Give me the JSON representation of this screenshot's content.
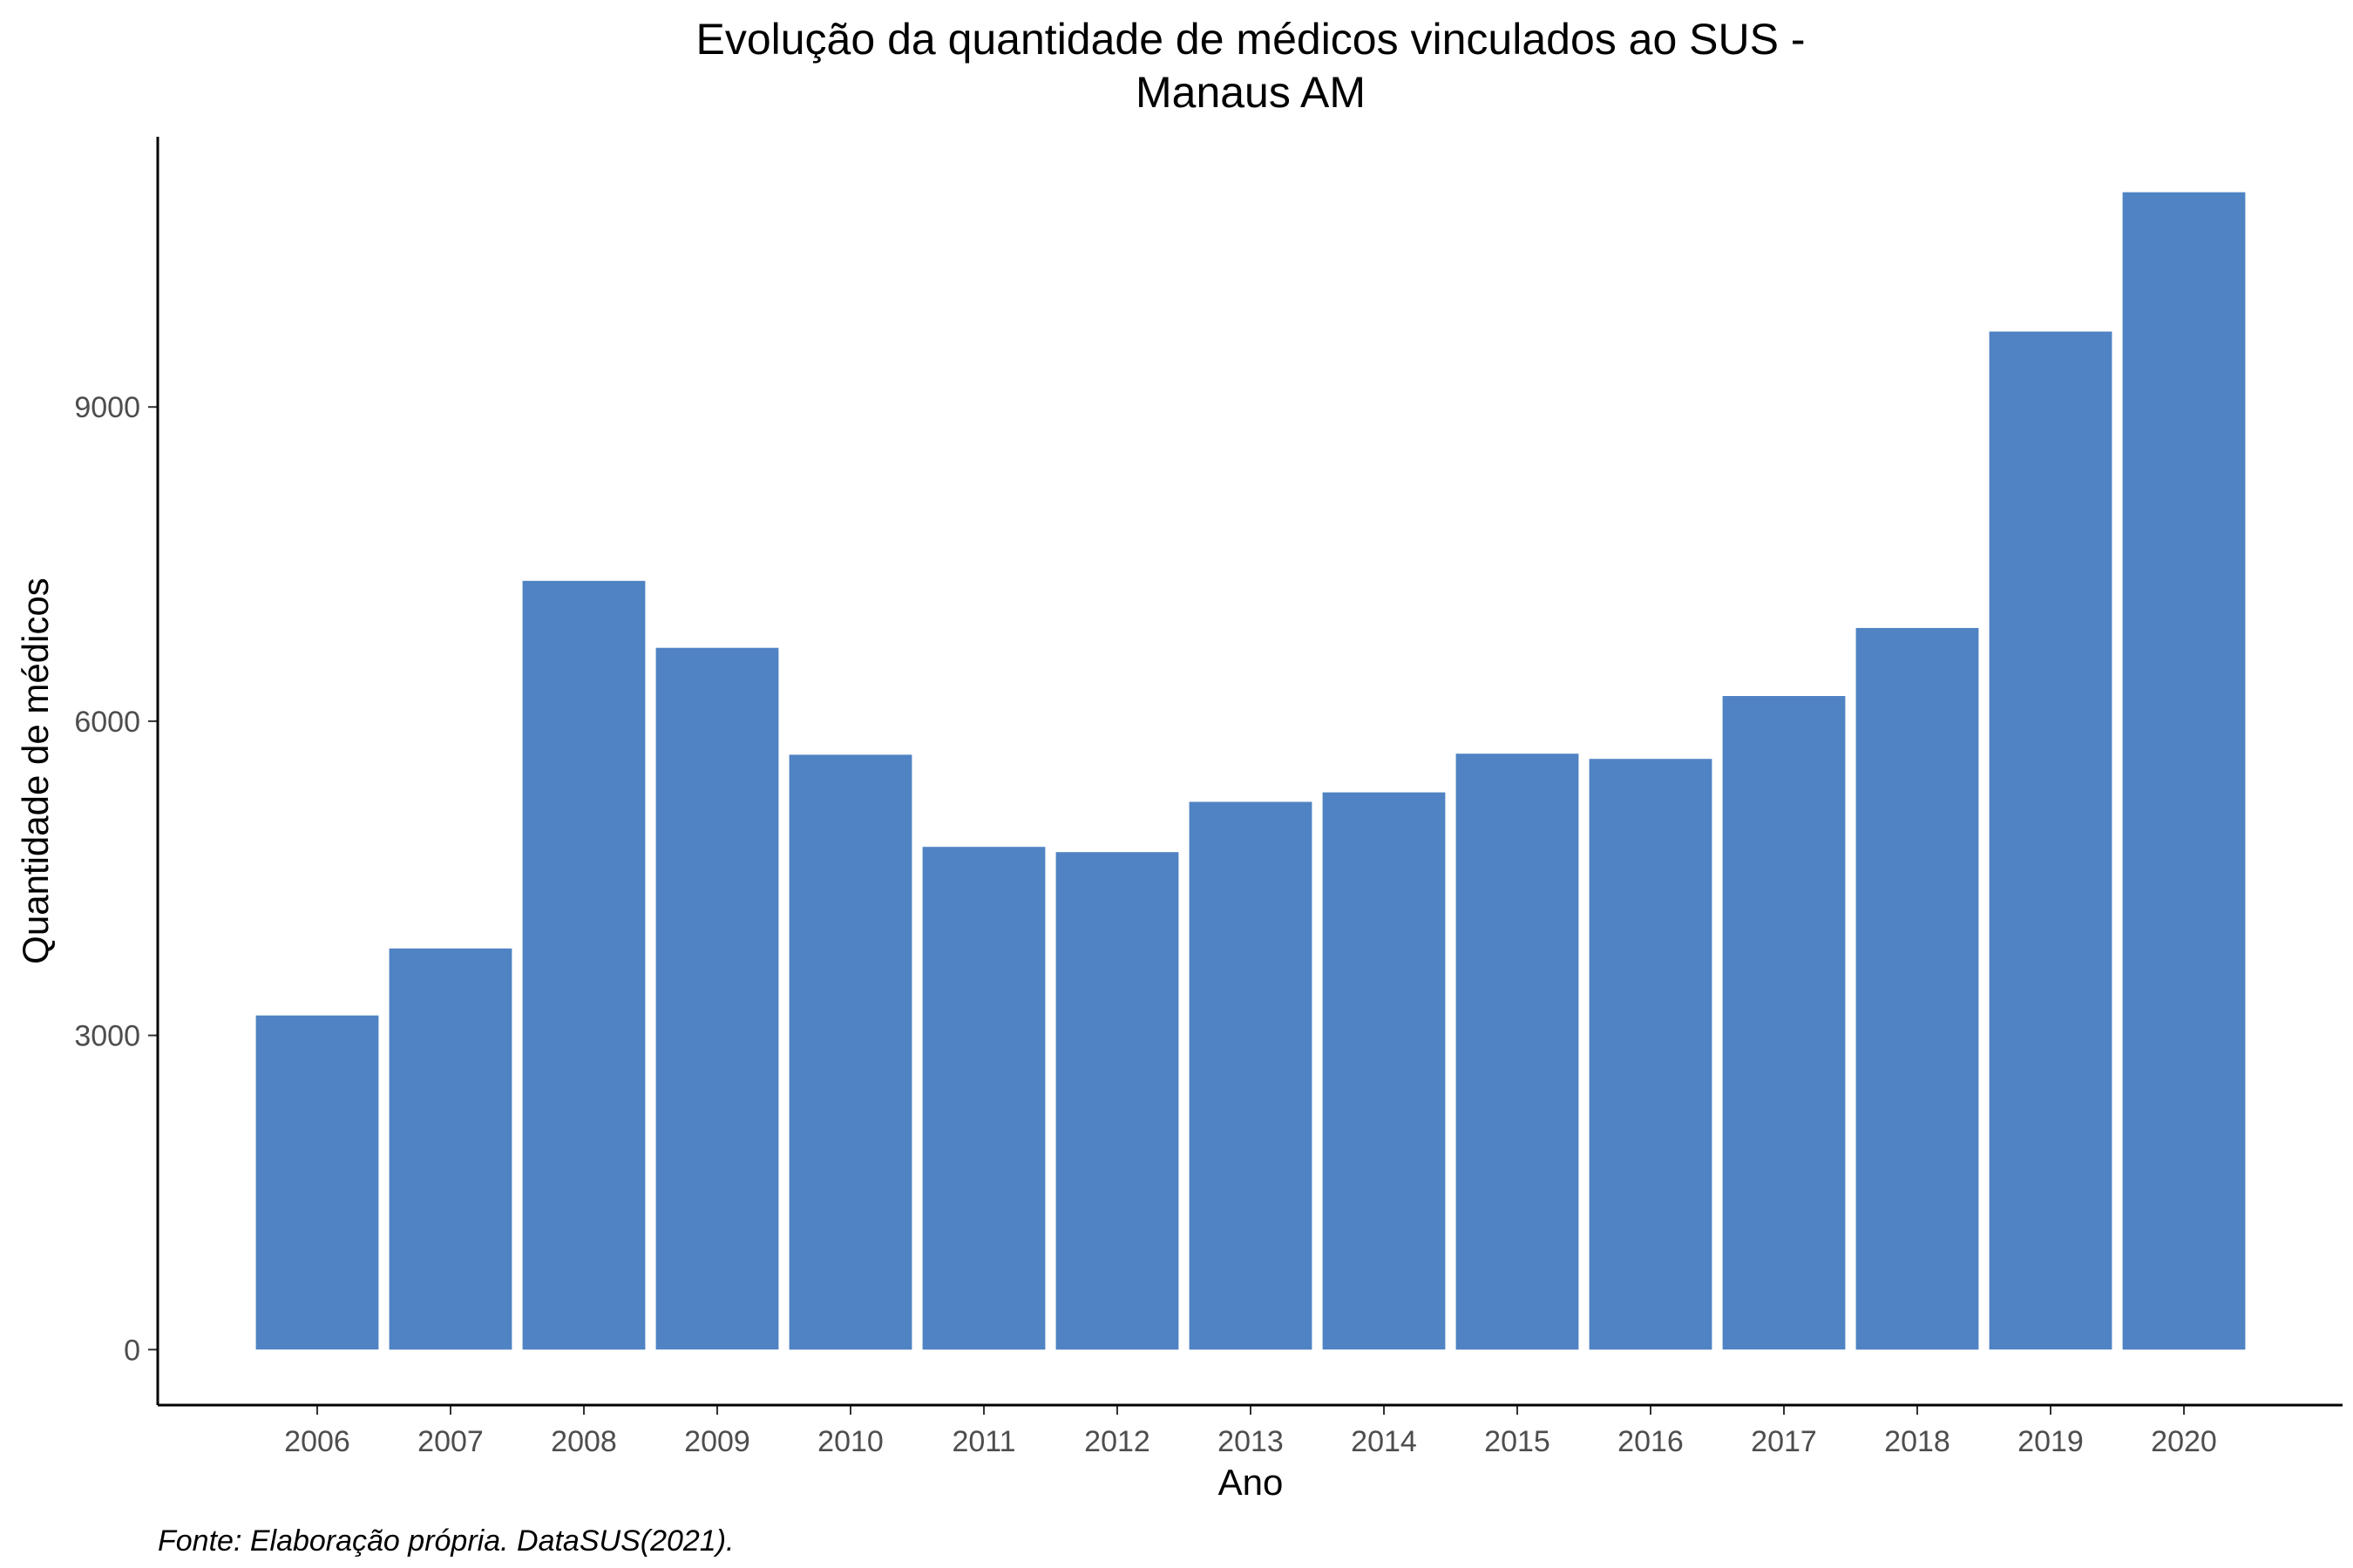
{
  "chart_data": {
    "type": "bar",
    "title_lines": [
      "Evolução da quantidade de médicos vinculados ao SUS -",
      "Manaus AM"
    ],
    "xlabel": "Ano",
    "ylabel": "Quantidade de médicos",
    "caption": "Fonte: Elaboração própria. DataSUS(2021).",
    "categories": [
      "2006",
      "2007",
      "2008",
      "2009",
      "2010",
      "2011",
      "2012",
      "2013",
      "2014",
      "2015",
      "2016",
      "2017",
      "2018",
      "2019",
      "2020"
    ],
    "values": [
      3190,
      3830,
      7340,
      6700,
      5680,
      4800,
      4750,
      5230,
      5320,
      5690,
      5640,
      6240,
      6890,
      9720,
      11050
    ],
    "yticks": [
      0,
      3000,
      6000,
      9000
    ],
    "ylim": [
      -530,
      11580
    ],
    "bar_color": "#4f83c3",
    "grid": false,
    "legend": "none"
  }
}
